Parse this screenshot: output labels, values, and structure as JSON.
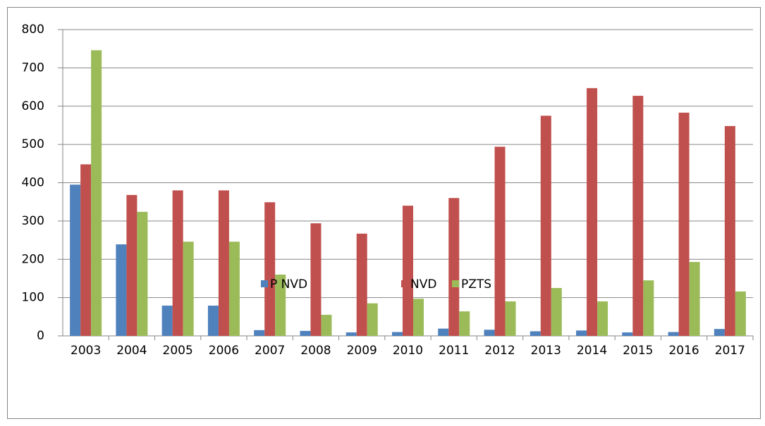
{
  "chart_data": {
    "type": "bar",
    "categories": [
      "2003",
      "2004",
      "2005",
      "2006",
      "2007",
      "2008",
      "2009",
      "2010",
      "2011",
      "2012",
      "2013",
      "2014",
      "2015",
      "2016",
      "2017"
    ],
    "series": [
      {
        "name": "P NVD",
        "color": "#4f81bd",
        "values": [
          395,
          239,
          79,
          79,
          15,
          13,
          9,
          10,
          19,
          16,
          12,
          14,
          9,
          10,
          18
        ]
      },
      {
        "name": "NVD",
        "color": "#c0504d",
        "values": [
          448,
          368,
          380,
          380,
          349,
          294,
          267,
          340,
          360,
          494,
          575,
          647,
          627,
          583,
          548
        ]
      },
      {
        "name": "PZTS",
        "color": "#9bbb59",
        "values": [
          746,
          324,
          246,
          246,
          160,
          55,
          85,
          97,
          64,
          90,
          125,
          90,
          145,
          193,
          116
        ]
      }
    ],
    "ylim": [
      0,
      800
    ],
    "yticks": [
      0,
      100,
      200,
      300,
      400,
      500,
      600,
      700,
      800
    ],
    "grid": true,
    "legend": "bottom"
  }
}
